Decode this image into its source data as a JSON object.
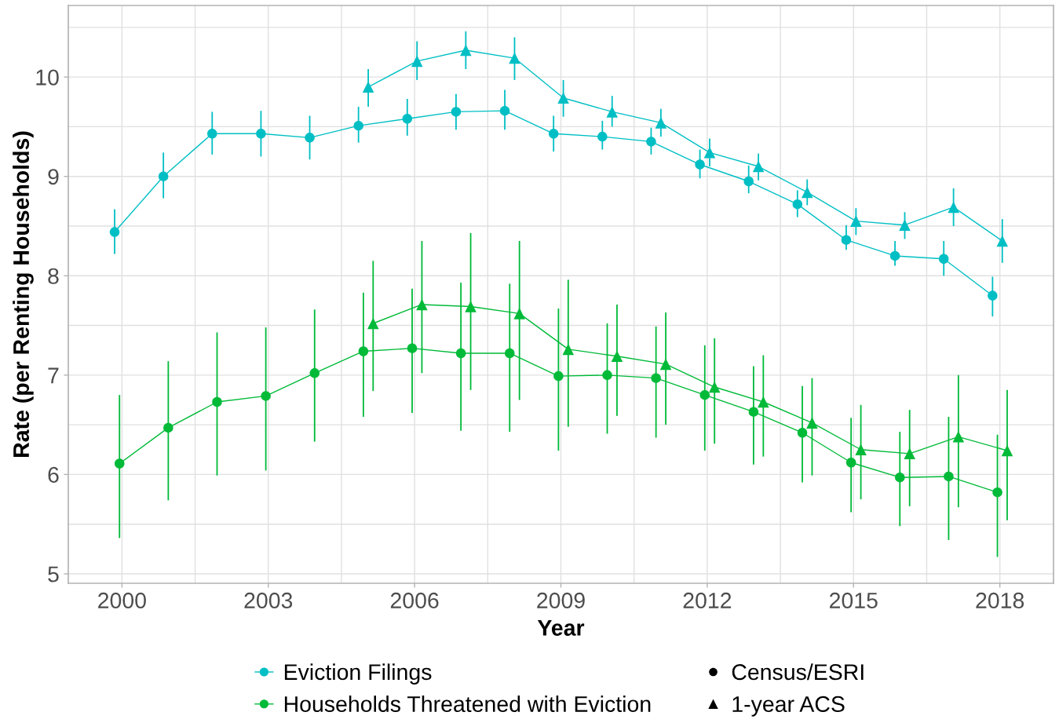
{
  "chart_data": {
    "type": "line",
    "xlabel": "Year",
    "ylabel": "Rate (per Renting Households)",
    "xlim": [
      1998.9,
      2019.1
    ],
    "ylim": [
      4.905,
      10.72
    ],
    "xticks": [
      2000,
      2003,
      2006,
      2009,
      2012,
      2015,
      2018
    ],
    "yticks": [
      5,
      6,
      7,
      8,
      9,
      10
    ],
    "grid": true,
    "legend": "bottom",
    "line_style": "solid",
    "annotations": [
      "Census/ESRI",
      "1-year ACS"
    ],
    "series": [
      {
        "name": "Eviction Filings",
        "color": "#00bfc4",
        "marker": "circle",
        "x": [
          1999.85,
          2000.85,
          2001.85,
          2002.85,
          2003.85,
          2004.85,
          2005.85,
          2006.85,
          2007.85,
          2008.85,
          2009.85,
          2010.85,
          2011.85,
          2012.85,
          2013.85,
          2014.85,
          2015.85,
          2016.85,
          2017.85
        ],
        "values": [
          8.44,
          9.0,
          9.43,
          9.43,
          9.39,
          9.51,
          9.58,
          9.65,
          9.66,
          9.43,
          9.4,
          9.35,
          9.12,
          8.95,
          8.72,
          8.36,
          8.2,
          8.17,
          7.8
        ],
        "errors": [
          [
            8.22,
            8.67
          ],
          [
            8.78,
            9.24
          ],
          [
            9.22,
            9.65
          ],
          [
            9.2,
            9.66
          ],
          [
            9.17,
            9.61
          ],
          [
            9.34,
            9.7
          ],
          [
            9.41,
            9.78
          ],
          [
            9.47,
            9.83
          ],
          [
            9.47,
            9.87
          ],
          [
            9.25,
            9.61
          ],
          [
            9.27,
            9.56
          ],
          [
            9.22,
            9.49
          ],
          [
            8.98,
            9.27
          ],
          [
            8.83,
            9.11
          ],
          [
            8.59,
            8.86
          ],
          [
            8.26,
            8.51
          ],
          [
            8.1,
            8.35
          ],
          [
            8.0,
            8.35
          ],
          [
            7.59,
            7.99
          ]
        ]
      },
      {
        "name": "Households Threatened with Eviction",
        "color": "#00ba38",
        "marker": "circle",
        "x": [
          1999.95,
          2000.95,
          2001.95,
          2002.95,
          2003.95,
          2004.95,
          2005.95,
          2006.95,
          2007.95,
          2008.95,
          2009.95,
          2010.95,
          2011.95,
          2012.95,
          2013.95,
          2014.95,
          2015.95,
          2016.95,
          2017.95
        ],
        "values": [
          6.11,
          6.47,
          6.73,
          6.79,
          7.02,
          7.24,
          7.27,
          7.22,
          7.22,
          6.99,
          7.0,
          6.97,
          6.8,
          6.63,
          6.42,
          6.12,
          5.97,
          5.98,
          5.82
        ],
        "errors": [
          [
            5.36,
            6.8
          ],
          [
            5.74,
            7.14
          ],
          [
            5.99,
            7.43
          ],
          [
            6.04,
            7.48
          ],
          [
            6.33,
            7.66
          ],
          [
            6.58,
            7.83
          ],
          [
            6.62,
            7.87
          ],
          [
            6.44,
            7.93
          ],
          [
            6.43,
            7.92
          ],
          [
            6.24,
            7.67
          ],
          [
            6.41,
            7.52
          ],
          [
            6.37,
            7.49
          ],
          [
            6.24,
            7.3
          ],
          [
            6.1,
            7.09
          ],
          [
            5.92,
            6.89
          ],
          [
            5.62,
            6.57
          ],
          [
            5.48,
            6.43
          ],
          [
            5.34,
            6.58
          ],
          [
            5.17,
            6.4
          ]
        ]
      },
      {
        "color": "#00bfc4",
        "marker": "triangle",
        "x": [
          2005.05,
          2006.05,
          2007.05,
          2008.05,
          2009.05,
          2010.05,
          2011.05,
          2012.05,
          2013.05,
          2014.05,
          2015.05,
          2016.05,
          2017.05,
          2018.05
        ],
        "values": [
          9.9,
          10.16,
          10.27,
          10.19,
          9.79,
          9.65,
          9.54,
          9.24,
          9.1,
          8.84,
          8.55,
          8.51,
          8.69,
          8.35
        ],
        "errors": [
          [
            9.7,
            10.08
          ],
          [
            9.97,
            10.36
          ],
          [
            10.08,
            10.46
          ],
          [
            9.97,
            10.4
          ],
          [
            9.6,
            9.97
          ],
          [
            9.5,
            9.81
          ],
          [
            9.4,
            9.68
          ],
          [
            9.1,
            9.38
          ],
          [
            8.96,
            9.23
          ],
          [
            8.71,
            8.97
          ],
          [
            8.41,
            8.68
          ],
          [
            8.37,
            8.64
          ],
          [
            8.5,
            8.88
          ],
          [
            8.13,
            8.57
          ]
        ]
      },
      {
        "color": "#00ba38",
        "marker": "triangle",
        "x": [
          2005.15,
          2006.15,
          2007.15,
          2008.15,
          2009.15,
          2010.15,
          2011.15,
          2012.15,
          2013.15,
          2014.15,
          2015.15,
          2016.15,
          2017.15,
          2018.15
        ],
        "values": [
          7.52,
          7.71,
          7.69,
          7.62,
          7.26,
          7.19,
          7.11,
          6.88,
          6.73,
          6.52,
          6.25,
          6.21,
          6.38,
          6.24
        ],
        "errors": [
          [
            6.84,
            8.15
          ],
          [
            7.02,
            8.35
          ],
          [
            6.85,
            8.43
          ],
          [
            6.75,
            8.35
          ],
          [
            6.48,
            7.96
          ],
          [
            6.59,
            7.71
          ],
          [
            6.5,
            7.63
          ],
          [
            6.31,
            7.37
          ],
          [
            6.18,
            7.2
          ],
          [
            5.99,
            6.97
          ],
          [
            5.75,
            6.7
          ],
          [
            5.68,
            6.65
          ],
          [
            5.67,
            7.0
          ],
          [
            5.54,
            6.85
          ]
        ]
      }
    ]
  }
}
